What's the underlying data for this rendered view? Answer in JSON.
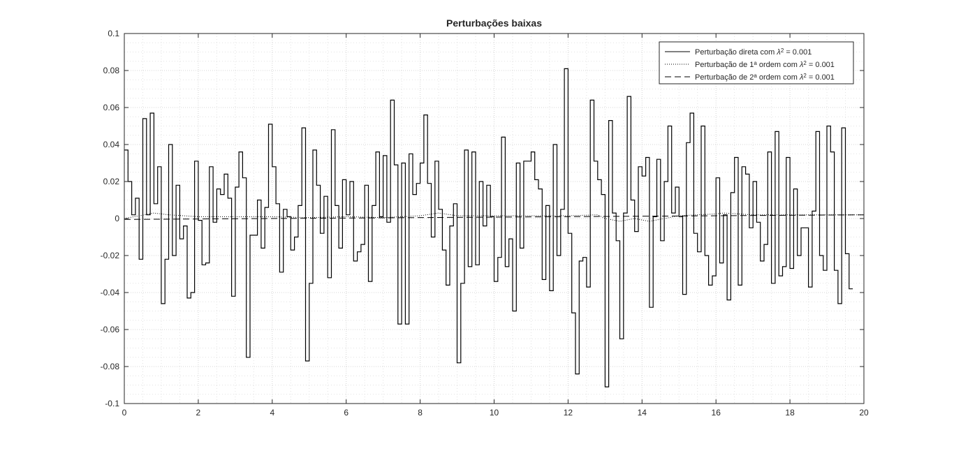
{
  "figure": {
    "title": "Perturbações baixas"
  },
  "chart_data": {
    "type": "line",
    "title": "Perturbações baixas",
    "xlabel": "",
    "ylabel": "",
    "xlim": [
      0,
      20
    ],
    "ylim": [
      -0.1,
      0.1
    ],
    "grid": "on (major and minor)",
    "legend_position": "top-right",
    "x_ticks": [
      "0",
      "2",
      "4",
      "6",
      "8",
      "10",
      "12",
      "14",
      "16",
      "18",
      "20"
    ],
    "y_ticks": [
      "0.1",
      "0.08",
      "0.06",
      "0.04",
      "0.02",
      "0",
      "-0.02",
      "-0.04",
      "-0.06",
      "-0.08",
      "-0.1"
    ],
    "series": [
      {
        "name": "Perturbação direta com λ² = 0.001",
        "legend_label": {
          "pre": "Perturbação direta com ",
          "sym": "λ",
          "sup": "2",
          "post": " = 0.001"
        },
        "style": "solid",
        "color": "#000000",
        "step": 0.1,
        "values": [
          0.037,
          0.02,
          0.002,
          0.011,
          -0.022,
          0.054,
          0.002,
          0.057,
          0.008,
          0.028,
          -0.046,
          -0.022,
          0.04,
          -0.02,
          0.018,
          -0.011,
          -0.004,
          -0.043,
          -0.04,
          0.031,
          -0.001,
          -0.025,
          -0.024,
          0.028,
          -0.002,
          0.016,
          0.013,
          0.024,
          0.011,
          -0.042,
          0.017,
          0.036,
          0.022,
          -0.075,
          -0.009,
          -0.009,
          0.01,
          -0.016,
          0.006,
          0.051,
          0.028,
          0.008,
          -0.029,
          0.005,
          0.001,
          -0.017,
          -0.01,
          0.007,
          0.049,
          -0.077,
          -0.035,
          0.037,
          0.018,
          -0.008,
          0.012,
          -0.032,
          0.048,
          0.007,
          -0.016,
          0.021,
          0.002,
          0.02,
          -0.023,
          -0.018,
          -0.014,
          0.018,
          -0.034,
          0.007,
          0.036,
          0.001,
          0.034,
          -0.002,
          0.064,
          0.029,
          -0.057,
          0.03,
          -0.057,
          0.035,
          0.013,
          0.019,
          0.03,
          0.056,
          0.019,
          -0.01,
          0.031,
          0.005,
          -0.017,
          -0.036,
          -0.004,
          0.008,
          -0.078,
          -0.035,
          0.037,
          -0.026,
          0.036,
          -0.025,
          0.02,
          -0.004,
          0.018,
          0.001,
          -0.034,
          -0.021,
          0.044,
          -0.026,
          -0.011,
          -0.05,
          0.03,
          -0.016,
          0.031,
          0.031,
          0.036,
          0.021,
          0.016,
          -0.033,
          0.007,
          -0.039,
          0.04,
          -0.02,
          0.005,
          0.081,
          -0.008,
          -0.051,
          -0.084,
          -0.023,
          -0.021,
          -0.037,
          0.064,
          0.031,
          0.021,
          0.013,
          -0.091,
          0.053,
          0.003,
          -0.012,
          -0.065,
          0.003,
          0.066,
          0.01,
          -0.007,
          0.028,
          0.023,
          0.033,
          -0.048,
          0.001,
          0.032,
          -0.012,
          0.02,
          0.05,
          0.003,
          0.017,
          0.001,
          -0.041,
          0.041,
          0.057,
          -0.008,
          -0.018,
          0.05,
          -0.02,
          -0.036,
          -0.031,
          0.022,
          -0.024,
          0.002,
          -0.044,
          0.014,
          0.033,
          -0.036,
          0.028,
          0.024,
          -0.005,
          0.02,
          -0.002,
          -0.023,
          -0.014,
          0.036,
          -0.035,
          0.047,
          -0.031,
          -0.026,
          0.033,
          -0.027,
          0.016,
          -0.02,
          -0.005,
          -0.005,
          -0.037,
          0.004,
          0.047,
          -0.02,
          -0.028,
          0.05,
          0.036,
          -0.028,
          -0.046,
          0.049,
          -0.019,
          -0.038
        ]
      },
      {
        "name": "Perturbação de 1ª ordem com λ² = 0.001",
        "legend_label": {
          "pre": "Perturbação de 1",
          "ord": "a",
          "mid": " ordem com ",
          "sym": "λ",
          "sup": "2",
          "post": " = 0.001"
        },
        "style": "dotted",
        "color": "#000000",
        "x": [
          0,
          0.4,
          0.8,
          1.2,
          1.6,
          2.0,
          3.0,
          4.0,
          5.0,
          6.0,
          7.0,
          8.0,
          8.5,
          9.0,
          10.0,
          11.0,
          12.0,
          12.8,
          13.0,
          13.4,
          13.8,
          14.2,
          14.6,
          15.0,
          15.5,
          16.0,
          16.2,
          17.0,
          18.0,
          19.0,
          20.0
        ],
        "y": [
          0.0,
          0.0015,
          0.003,
          0.002,
          0.0015,
          0.001,
          0.001,
          0.001,
          0.0005,
          0.001,
          0.0005,
          0.0015,
          0.003,
          0.0015,
          0.0015,
          0.0015,
          0.0015,
          0.002,
          0.0,
          -0.0015,
          0.0,
          -0.0015,
          0.0,
          0.0015,
          0.002,
          0.0025,
          0.003,
          0.002,
          0.002,
          0.002,
          0.002
        ]
      },
      {
        "name": "Perturbação de 2ª ordem com λ² = 0.001",
        "legend_label": {
          "pre": "Perturbação de 2",
          "ord": "a",
          "mid": " ordem com ",
          "sym": "λ",
          "sup": "2",
          "post": " = 0.001"
        },
        "style": "dashed",
        "color": "#000000",
        "x": [
          0,
          20
        ],
        "y": [
          -0.0005,
          0.002
        ]
      }
    ]
  }
}
